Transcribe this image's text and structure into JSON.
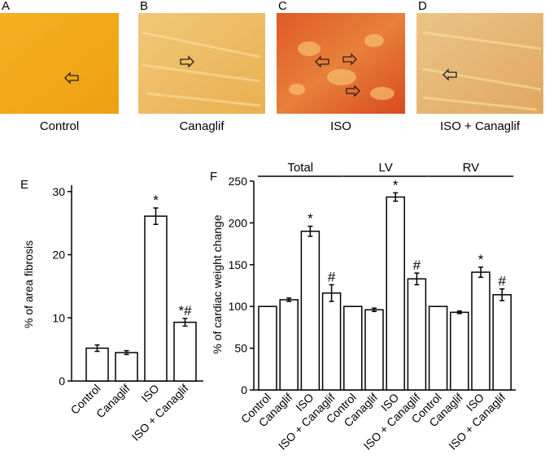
{
  "images": [
    {
      "label": "A",
      "caption": "Control"
    },
    {
      "label": "B",
      "caption": "Canaglif"
    },
    {
      "label": "C",
      "caption": "ISO"
    },
    {
      "label": "D",
      "caption": "ISO + Canaglif"
    }
  ],
  "chart_data": [
    {
      "type": "bar",
      "panel": "E",
      "ylabel": "% of area fibrosis",
      "categories": [
        "Control",
        "Canaglif",
        "ISO",
        "ISO + Canaglif"
      ],
      "values": [
        5.2,
        4.5,
        26.1,
        9.3
      ],
      "errors": [
        0.5,
        0.3,
        1.3,
        0.6
      ],
      "annotations": [
        null,
        null,
        "*",
        "*#"
      ],
      "color": "#ffffff",
      "ylim": [
        0,
        31
      ],
      "yticks": [
        0,
        10,
        20,
        30
      ]
    },
    {
      "type": "bar",
      "panel": "F",
      "ylabel": "% of cardiac weight change",
      "categories": [
        "Control",
        "Canaglif",
        "ISO",
        "ISO + Canaglif",
        "Control",
        "Canaglif",
        "ISO",
        "ISO + Canaglif",
        "Control",
        "Canaglif",
        "ISO",
        "ISO + Canaglif"
      ],
      "values": [
        100,
        108,
        190,
        116,
        100,
        96,
        231,
        133,
        100,
        93,
        141,
        114
      ],
      "errors": [
        0,
        2,
        6,
        10,
        0,
        2,
        5,
        7,
        0,
        1.5,
        6,
        7
      ],
      "annotations": [
        null,
        null,
        "*",
        "#",
        null,
        null,
        "*",
        "#",
        null,
        null,
        "*",
        "#"
      ],
      "groups": [
        {
          "name": "Total",
          "start": 0,
          "end": 3
        },
        {
          "name": "LV",
          "start": 4,
          "end": 7
        },
        {
          "name": "RV",
          "start": 8,
          "end": 11
        }
      ],
      "color": "#ffffff",
      "ylim": [
        0,
        250
      ],
      "yticks": [
        0,
        50,
        100,
        150,
        200,
        250
      ]
    }
  ]
}
